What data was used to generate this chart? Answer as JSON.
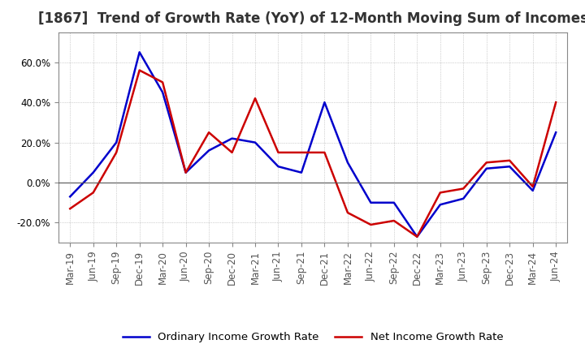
{
  "title": "[1867]  Trend of Growth Rate (YoY) of 12-Month Moving Sum of Incomes",
  "ylim": [
    -30,
    75
  ],
  "yticks": [
    -20.0,
    0.0,
    20.0,
    40.0,
    60.0
  ],
  "background_color": "#ffffff",
  "grid_color": "#aaaaaa",
  "x_labels": [
    "Mar-19",
    "Jun-19",
    "Sep-19",
    "Dec-19",
    "Mar-20",
    "Jun-20",
    "Sep-20",
    "Dec-20",
    "Mar-21",
    "Jun-21",
    "Sep-21",
    "Dec-21",
    "Mar-22",
    "Jun-22",
    "Sep-22",
    "Dec-22",
    "Mar-23",
    "Jun-23",
    "Sep-23",
    "Dec-23",
    "Mar-24",
    "Jun-24"
  ],
  "ordinary_income": [
    -7.0,
    5.0,
    20.0,
    65.0,
    45.0,
    5.0,
    16.0,
    22.0,
    20.0,
    8.0,
    5.0,
    40.0,
    10.0,
    -10.0,
    -10.0,
    -27.0,
    -11.0,
    -8.0,
    7.0,
    8.0,
    -4.0,
    25.0
  ],
  "net_income": [
    -13.0,
    -5.0,
    15.0,
    56.0,
    50.0,
    5.0,
    25.0,
    15.0,
    42.0,
    15.0,
    15.0,
    15.0,
    -15.0,
    -21.0,
    -19.0,
    -27.0,
    -5.0,
    -3.0,
    10.0,
    11.0,
    -2.0,
    40.0
  ],
  "ordinary_color": "#0000cc",
  "net_color": "#cc0000",
  "legend_labels": [
    "Ordinary Income Growth Rate",
    "Net Income Growth Rate"
  ],
  "title_fontsize": 12,
  "tick_fontsize": 8.5,
  "legend_fontsize": 9.5
}
